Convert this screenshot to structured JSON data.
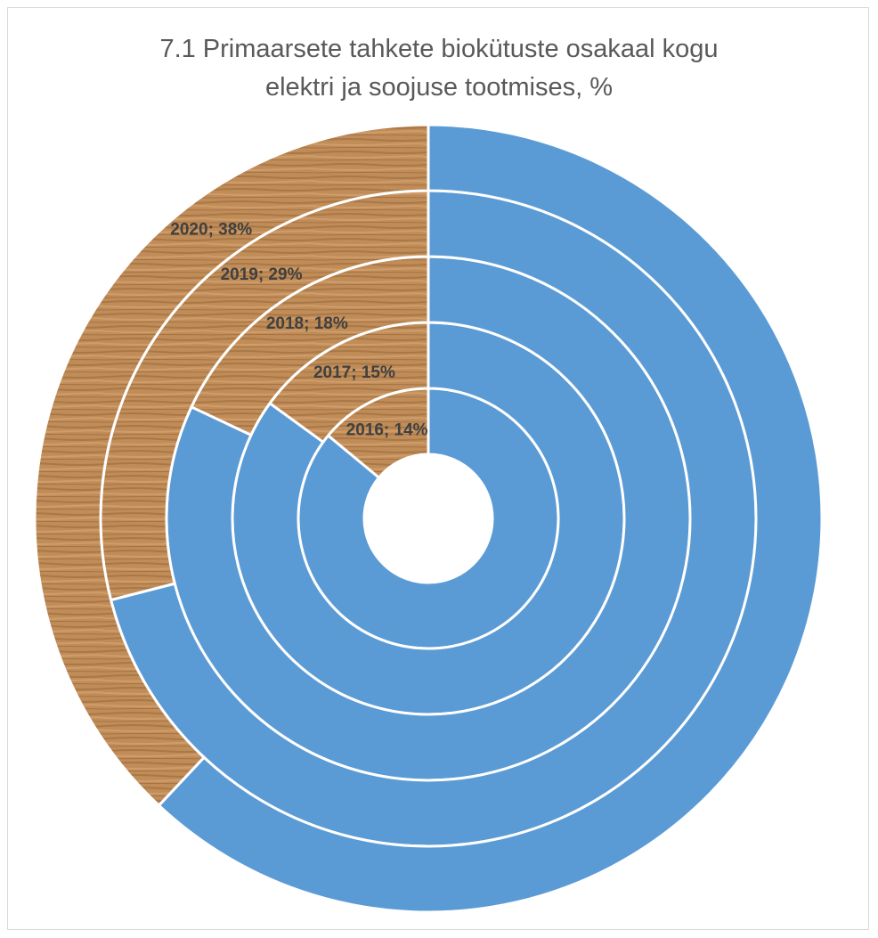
{
  "chart_data": {
    "type": "doughnut",
    "title": "7.1 Primaarsete tahkete biokütuste osakaal kogu elektri ja soojuse tootmises, %",
    "categories": [
      "2016",
      "2017",
      "2018",
      "2019",
      "2020"
    ],
    "values": [
      14,
      15,
      18,
      29,
      38
    ],
    "value_labels": [
      "2016; 14%",
      "2017; 15%",
      "2018; 18%",
      "2019; 29%",
      "2020; 38%"
    ],
    "color": "#b5814e",
    "rest_color": "#5b9bd5"
  }
}
